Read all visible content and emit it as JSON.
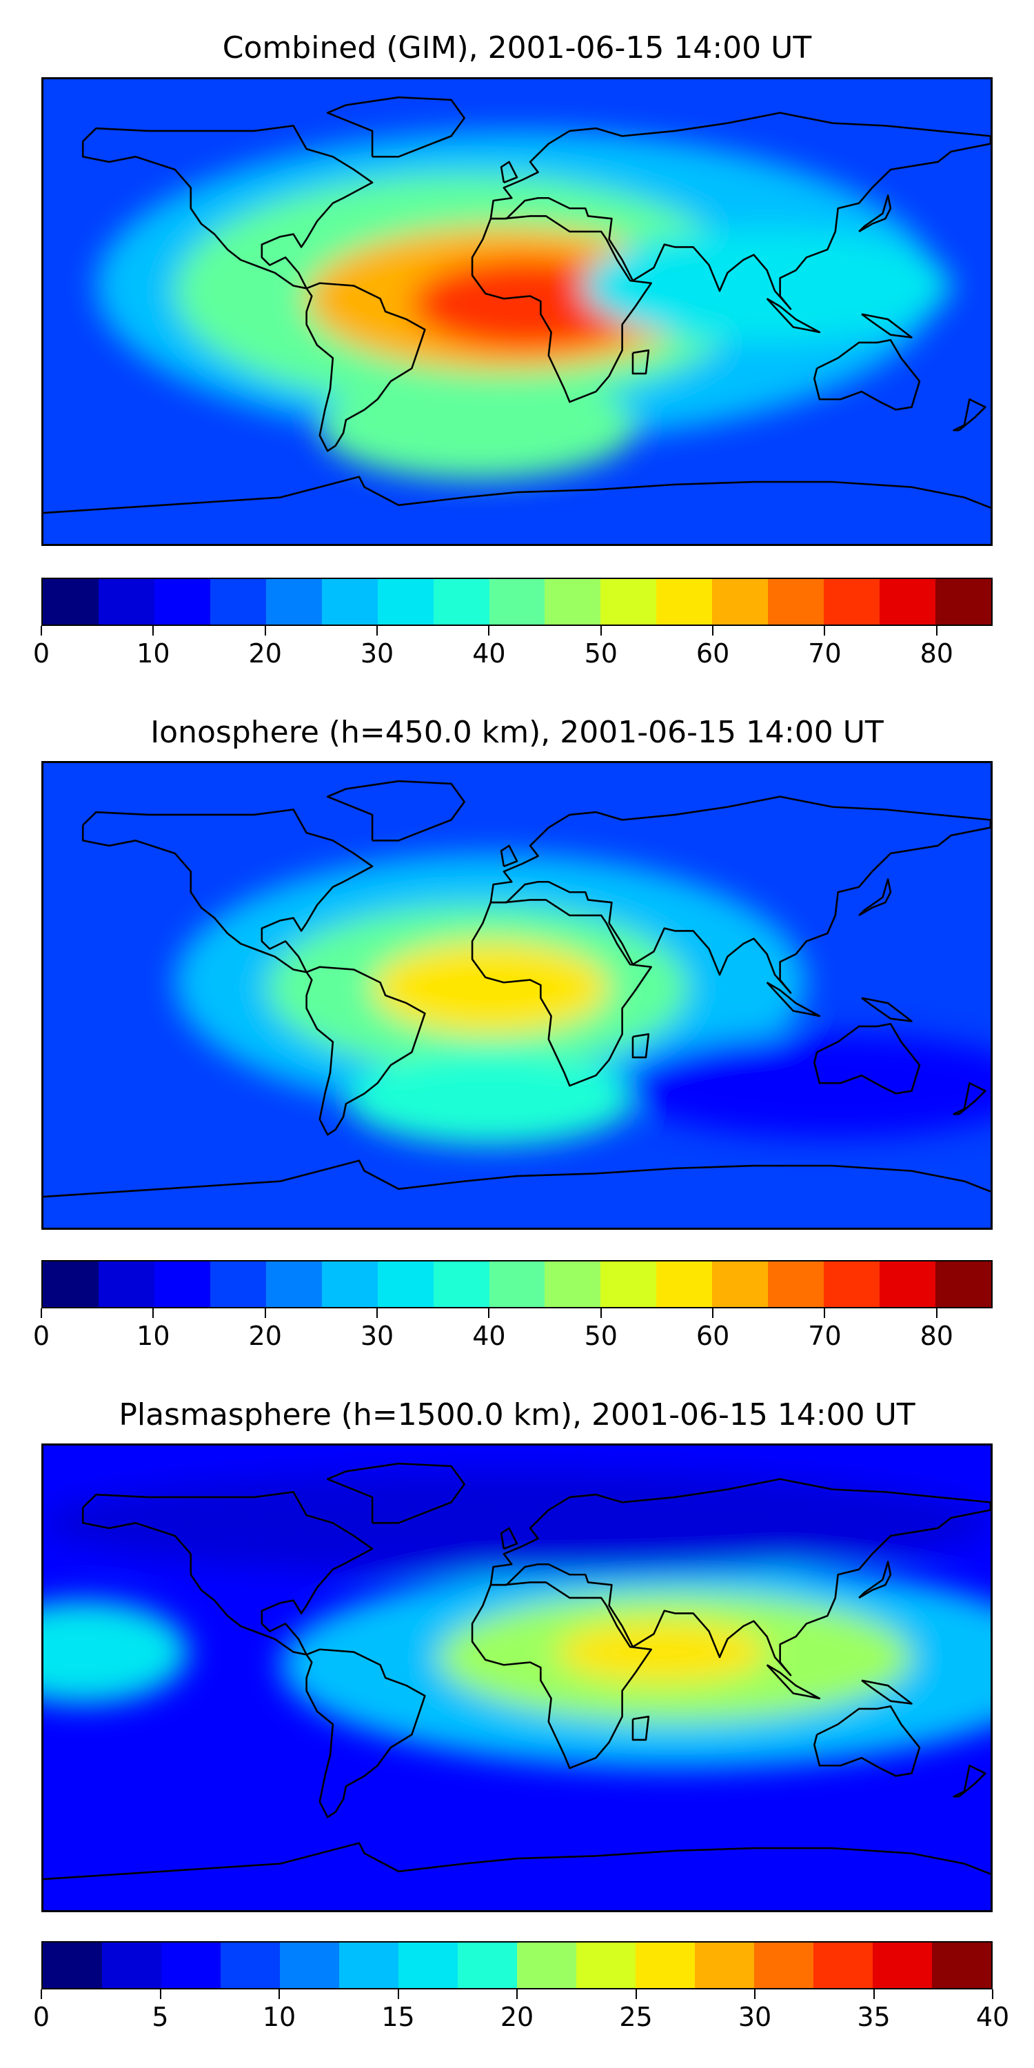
{
  "colormap": [
    "#00007f",
    "#0000d9",
    "#0000ff",
    "#0040ff",
    "#0080ff",
    "#00bfff",
    "#00e6f2",
    "#1fffd6",
    "#61ff9c",
    "#9cff61",
    "#d6ff1f",
    "#ffe600",
    "#ffb000",
    "#ff7000",
    "#ff3300",
    "#e60000",
    "#8b0000"
  ],
  "panels": [
    {
      "title": "Combined (GIM), 2001-06-15 14:00 UT",
      "colorbar": {
        "vmin": 0,
        "vmax": 85,
        "levels": 17,
        "ticks": [
          "0",
          "10",
          "20",
          "30",
          "40",
          "50",
          "60",
          "70",
          "80"
        ],
        "tick_values": [
          0,
          10,
          20,
          30,
          40,
          50,
          60,
          70,
          80
        ]
      },
      "field": {
        "background_level": 3,
        "blobs": [
          {
            "lon": 0,
            "lat": 10,
            "rx": 160,
            "ry": 60,
            "level": 5
          },
          {
            "lon": -20,
            "lat": 8,
            "rx": 110,
            "ry": 45,
            "level": 8
          },
          {
            "lon": -5,
            "lat": 5,
            "rx": 75,
            "ry": 28,
            "level": 12
          },
          {
            "lon": 5,
            "lat": 3,
            "rx": 45,
            "ry": 18,
            "level": 14
          },
          {
            "lon": -15,
            "lat": -45,
            "rx": 60,
            "ry": 20,
            "level": 8
          },
          {
            "lon": 95,
            "lat": 10,
            "rx": 70,
            "ry": 22,
            "level": 6
          }
        ]
      }
    },
    {
      "title": "Ionosphere  (h=450.0 km), 2001-06-15 14:00 UT",
      "colorbar": {
        "vmin": 0,
        "vmax": 85,
        "levels": 17,
        "ticks": [
          "0",
          "10",
          "20",
          "30",
          "40",
          "50",
          "60",
          "70",
          "80"
        ],
        "tick_values": [
          0,
          10,
          20,
          30,
          40,
          50,
          60,
          70,
          80
        ]
      },
      "field": {
        "background_level": 3,
        "blobs": [
          {
            "lon": -10,
            "lat": 5,
            "rx": 120,
            "ry": 50,
            "level": 5
          },
          {
            "lon": -15,
            "lat": 3,
            "rx": 80,
            "ry": 32,
            "level": 8
          },
          {
            "lon": -10,
            "lat": 3,
            "rx": 45,
            "ry": 18,
            "level": 11
          },
          {
            "lon": -10,
            "lat": -40,
            "rx": 55,
            "ry": 18,
            "level": 7
          },
          {
            "lon": 120,
            "lat": -35,
            "rx": 80,
            "ry": 20,
            "level": 2
          }
        ]
      }
    },
    {
      "title": "Plasmasphere (h=1500.0 km), 2001-06-15 14:00 UT",
      "colorbar": {
        "vmin": 0,
        "vmax": 40,
        "levels": 16,
        "ticks": [
          "0",
          "5",
          "10",
          "15",
          "20",
          "25",
          "30",
          "35",
          "40"
        ],
        "tick_values": [
          0,
          5,
          10,
          15,
          20,
          25,
          30,
          35,
          40
        ]
      },
      "field": {
        "background_level": 2,
        "blobs": [
          {
            "lon": 60,
            "lat": 5,
            "rx": 150,
            "ry": 40,
            "level": 5
          },
          {
            "lon": 60,
            "lat": 8,
            "rx": 90,
            "ry": 25,
            "level": 8
          },
          {
            "lon": 55,
            "lat": 10,
            "rx": 40,
            "ry": 12,
            "level": 10
          },
          {
            "lon": -165,
            "lat": 10,
            "rx": 40,
            "ry": 20,
            "level": 6
          },
          {
            "lon": 0,
            "lat": 60,
            "rx": 180,
            "ry": 20,
            "level": 1
          }
        ]
      }
    }
  ]
}
